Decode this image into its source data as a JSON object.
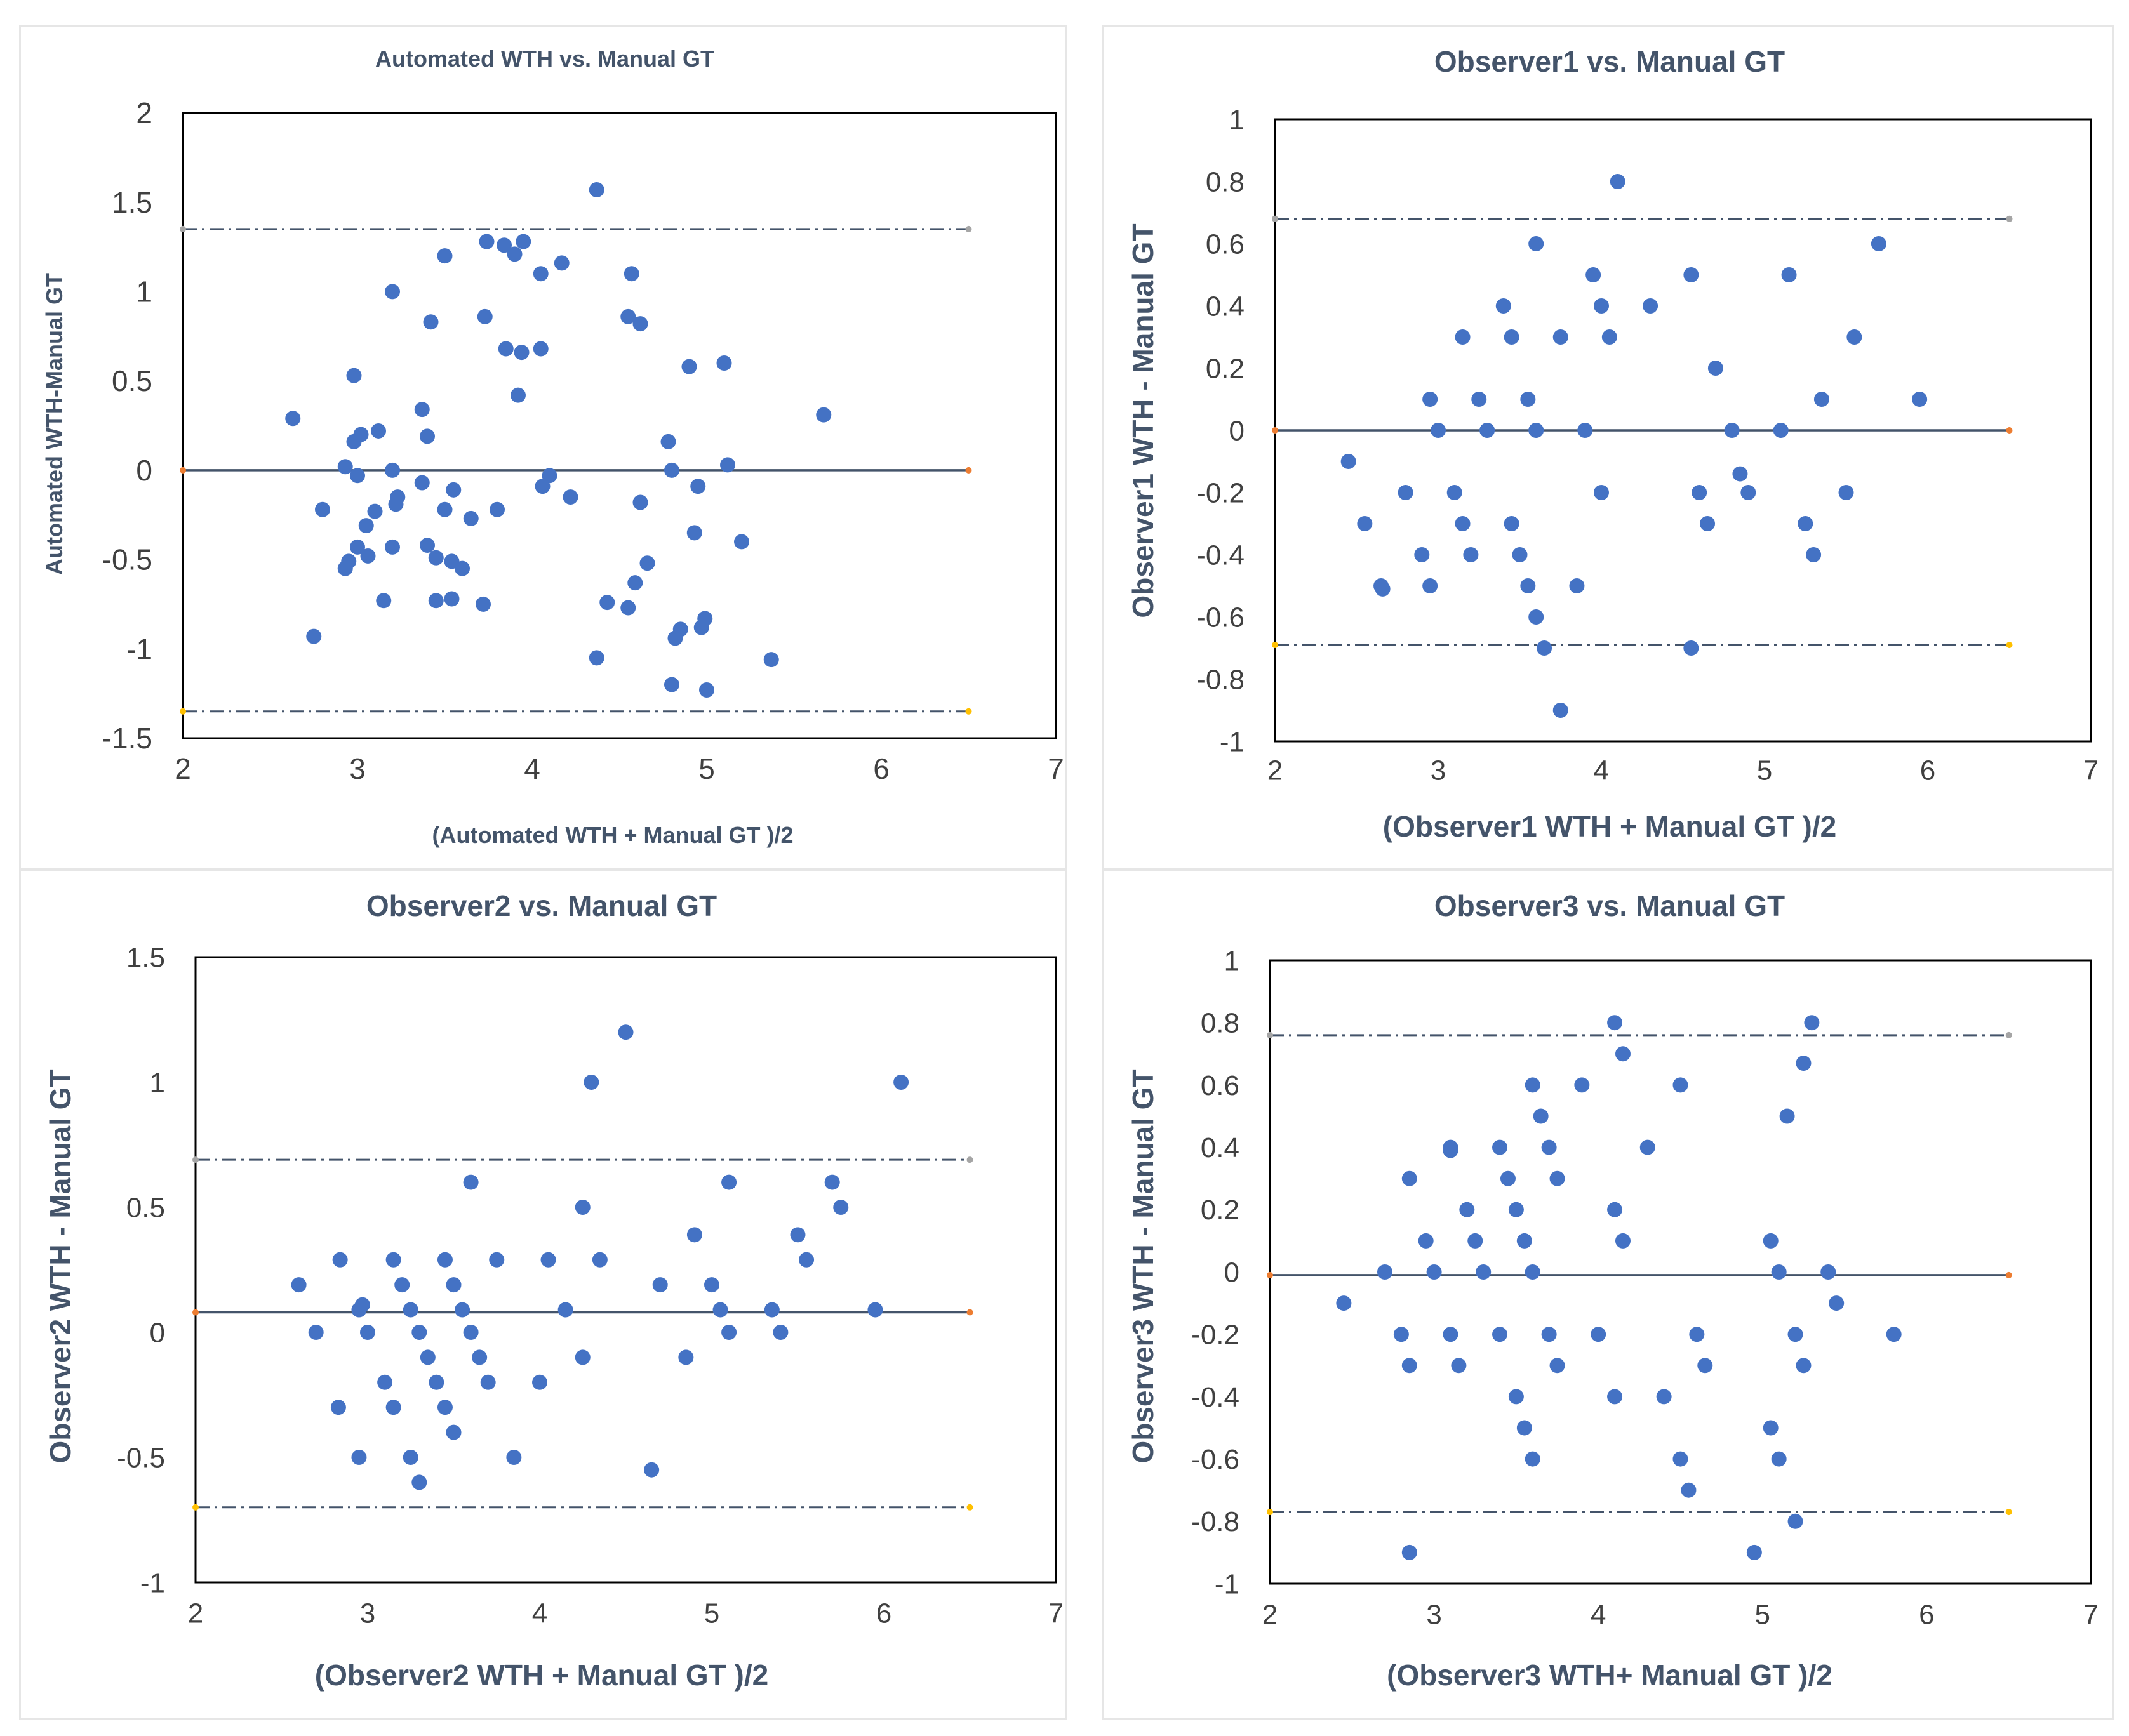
{
  "colors": {
    "point": "#4472c4",
    "mean_line": "#44546a",
    "loa_line": "#44546a",
    "marker_upper": "#a5a5a5",
    "marker_mean": "#ed7d31",
    "marker_lower": "#ffc000",
    "plot_border": "#000000",
    "text": "#44546a",
    "tick": "#404040"
  },
  "chart_data": [
    {
      "type": "scatter",
      "title": "Automated WTH vs. Manual GT",
      "xlabel": "(Automated WTH + Manual GT )/2",
      "ylabel": "Automated WTH-Manual GT",
      "xlim": [
        2,
        7
      ],
      "ylim": [
        -1.5,
        2
      ],
      "xticks": [
        2,
        3,
        4,
        5,
        6,
        7
      ],
      "yticks": [
        -1.5,
        -1,
        -0.5,
        0,
        0.5,
        1,
        1.5,
        2
      ],
      "ytick_labels": [
        "-1.5",
        "-1",
        "-0.5",
        "0",
        "0.5",
        "1",
        "1.5",
        "2"
      ],
      "mean": 0,
      "upper_loa": 1.35,
      "lower_loa": -1.35,
      "line_x": [
        2,
        6.5
      ],
      "points": [
        [
          2.63,
          0.29
        ],
        [
          2.75,
          -0.93
        ],
        [
          2.8,
          -0.22
        ],
        [
          2.93,
          0.02
        ],
        [
          2.93,
          -0.55
        ],
        [
          2.95,
          -0.51
        ],
        [
          2.98,
          0.16
        ],
        [
          2.98,
          0.53
        ],
        [
          3.0,
          -0.43
        ],
        [
          3.0,
          -0.03
        ],
        [
          3.02,
          0.2
        ],
        [
          3.05,
          -0.31
        ],
        [
          3.06,
          -0.48
        ],
        [
          3.1,
          -0.23
        ],
        [
          3.12,
          0.22
        ],
        [
          3.15,
          -0.73
        ],
        [
          3.2,
          -0.43
        ],
        [
          3.2,
          0.0
        ],
        [
          3.2,
          1.0
        ],
        [
          3.22,
          -0.19
        ],
        [
          3.23,
          -0.15
        ],
        [
          3.37,
          0.34
        ],
        [
          3.37,
          -0.07
        ],
        [
          3.4,
          0.19
        ],
        [
          3.4,
          -0.42
        ],
        [
          3.42,
          0.83
        ],
        [
          3.45,
          -0.49
        ],
        [
          3.45,
          -0.73
        ],
        [
          3.5,
          -0.22
        ],
        [
          3.5,
          1.2
        ],
        [
          3.54,
          -0.51
        ],
        [
          3.55,
          -0.11
        ],
        [
          3.54,
          -0.72
        ],
        [
          3.6,
          -0.55
        ],
        [
          3.65,
          -0.27
        ],
        [
          3.72,
          -0.75
        ],
        [
          3.73,
          0.86
        ],
        [
          3.74,
          1.28
        ],
        [
          3.8,
          -0.22
        ],
        [
          3.84,
          1.26
        ],
        [
          3.85,
          0.68
        ],
        [
          3.9,
          1.21
        ],
        [
          3.92,
          0.42
        ],
        [
          3.94,
          0.66
        ],
        [
          3.95,
          1.28
        ],
        [
          4.05,
          1.1
        ],
        [
          4.05,
          0.68
        ],
        [
          4.06,
          -0.09
        ],
        [
          4.1,
          -0.03
        ],
        [
          4.17,
          1.16
        ],
        [
          4.22,
          -0.15
        ],
        [
          4.37,
          1.57
        ],
        [
          4.37,
          -1.05
        ],
        [
          4.43,
          -0.74
        ],
        [
          4.55,
          0.86
        ],
        [
          4.55,
          -0.77
        ],
        [
          4.57,
          1.1
        ],
        [
          4.59,
          -0.63
        ],
        [
          4.62,
          0.82
        ],
        [
          4.62,
          -0.18
        ],
        [
          4.66,
          -0.52
        ],
        [
          4.78,
          0.16
        ],
        [
          4.8,
          0.0
        ],
        [
          4.8,
          -1.2
        ],
        [
          4.82,
          -0.94
        ],
        [
          4.85,
          -0.89
        ],
        [
          4.9,
          0.58
        ],
        [
          4.93,
          -0.35
        ],
        [
          4.95,
          -0.09
        ],
        [
          4.97,
          -0.88
        ],
        [
          4.99,
          -0.83
        ],
        [
          5.0,
          -1.23
        ],
        [
          5.1,
          0.6
        ],
        [
          5.12,
          0.03
        ],
        [
          5.2,
          -0.4
        ],
        [
          5.37,
          -1.06
        ],
        [
          5.67,
          0.31
        ]
      ]
    },
    {
      "type": "scatter",
      "title": "Observer1 vs. Manual GT",
      "xlabel": "(Observer1 WTH + Manual GT )/2",
      "ylabel": "Observer1 WTH - Manual GT",
      "xlim": [
        2,
        7
      ],
      "ylim": [
        -1,
        1
      ],
      "xticks": [
        2,
        3,
        4,
        5,
        6,
        7
      ],
      "yticks": [
        -1,
        -0.8,
        -0.6,
        -0.4,
        -0.2,
        0,
        0.2,
        0.4,
        0.6,
        0.8,
        1
      ],
      "ytick_labels": [
        "-1",
        "-0.8",
        "-0.6",
        "-0.4",
        "-0.2",
        "0",
        "0.2",
        "0.4",
        "0.6",
        "0.8",
        "1"
      ],
      "mean": 0,
      "upper_loa": 0.68,
      "lower_loa": -0.69,
      "line_x": [
        2,
        6.5
      ],
      "points": [
        [
          2.45,
          -0.1
        ],
        [
          2.55,
          -0.3
        ],
        [
          2.65,
          -0.5
        ],
        [
          2.66,
          -0.51
        ],
        [
          2.8,
          -0.2
        ],
        [
          2.9,
          -0.4
        ],
        [
          2.95,
          0.1
        ],
        [
          2.95,
          -0.5
        ],
        [
          3.0,
          0.0
        ],
        [
          3.1,
          -0.2
        ],
        [
          3.15,
          0.3
        ],
        [
          3.15,
          -0.3
        ],
        [
          3.2,
          -0.4
        ],
        [
          3.25,
          0.1
        ],
        [
          3.3,
          0.0
        ],
        [
          3.4,
          0.4
        ],
        [
          3.45,
          0.3
        ],
        [
          3.45,
          -0.3
        ],
        [
          3.5,
          -0.4
        ],
        [
          3.55,
          0.1
        ],
        [
          3.55,
          -0.5
        ],
        [
          3.6,
          0.6
        ],
        [
          3.6,
          0.0
        ],
        [
          3.6,
          -0.6
        ],
        [
          3.65,
          -0.7
        ],
        [
          3.75,
          0.3
        ],
        [
          3.75,
          -0.9
        ],
        [
          3.85,
          -0.5
        ],
        [
          3.9,
          0.0
        ],
        [
          3.95,
          0.5
        ],
        [
          4.0,
          0.4
        ],
        [
          4.0,
          -0.2
        ],
        [
          4.05,
          0.3
        ],
        [
          4.1,
          0.8
        ],
        [
          4.3,
          0.4
        ],
        [
          4.55,
          0.5
        ],
        [
          4.55,
          -0.7
        ],
        [
          4.6,
          -0.2
        ],
        [
          4.65,
          -0.3
        ],
        [
          4.7,
          0.2
        ],
        [
          4.8,
          0.0
        ],
        [
          4.85,
          -0.14
        ],
        [
          4.9,
          -0.2
        ],
        [
          5.1,
          0.0
        ],
        [
          5.15,
          0.5
        ],
        [
          5.25,
          -0.3
        ],
        [
          5.3,
          -0.4
        ],
        [
          5.35,
          0.1
        ],
        [
          5.5,
          -0.2
        ],
        [
          5.55,
          0.3
        ],
        [
          5.7,
          0.6
        ],
        [
          5.95,
          0.1
        ]
      ]
    },
    {
      "type": "scatter",
      "title": "Observer2 vs. Manual GT",
      "xlabel": "(Observer2 WTH + Manual GT )/2",
      "ylabel": "Observer2 WTH - Manual GT",
      "xlim": [
        2,
        7
      ],
      "ylim": [
        -1,
        1.5
      ],
      "xticks": [
        2,
        3,
        4,
        5,
        6,
        7
      ],
      "yticks": [
        -1,
        -0.5,
        0,
        0.5,
        1,
        1.5
      ],
      "ytick_labels": [
        "-1",
        "-0.5",
        "0",
        "0.5",
        "1",
        "1.5"
      ],
      "mean": 0.08,
      "upper_loa": 0.69,
      "lower_loa": -0.7,
      "line_x": [
        2,
        6.5
      ],
      "points": [
        [
          2.6,
          0.19
        ],
        [
          2.7,
          0.0
        ],
        [
          2.83,
          -0.3
        ],
        [
          2.84,
          0.29
        ],
        [
          2.95,
          -0.5
        ],
        [
          2.95,
          0.09
        ],
        [
          2.97,
          0.11
        ],
        [
          3.0,
          0.0
        ],
        [
          3.1,
          -0.2
        ],
        [
          3.15,
          0.29
        ],
        [
          3.15,
          -0.3
        ],
        [
          3.2,
          0.19
        ],
        [
          3.25,
          -0.5
        ],
        [
          3.25,
          0.09
        ],
        [
          3.3,
          0.0
        ],
        [
          3.3,
          -0.6
        ],
        [
          3.35,
          -0.1
        ],
        [
          3.4,
          -0.2
        ],
        [
          3.45,
          0.29
        ],
        [
          3.45,
          -0.3
        ],
        [
          3.5,
          0.19
        ],
        [
          3.5,
          -0.4
        ],
        [
          3.55,
          0.09
        ],
        [
          3.6,
          0.6
        ],
        [
          3.6,
          0.0
        ],
        [
          3.65,
          -0.1
        ],
        [
          3.7,
          -0.2
        ],
        [
          3.75,
          0.29
        ],
        [
          3.85,
          -0.5
        ],
        [
          4.0,
          -0.2
        ],
        [
          4.05,
          0.29
        ],
        [
          4.15,
          0.09
        ],
        [
          4.25,
          0.5
        ],
        [
          4.25,
          -0.1
        ],
        [
          4.3,
          1.0
        ],
        [
          4.35,
          0.29
        ],
        [
          4.5,
          1.2
        ],
        [
          4.65,
          -0.55
        ],
        [
          4.7,
          0.19
        ],
        [
          4.85,
          -0.1
        ],
        [
          4.9,
          0.39
        ],
        [
          5.0,
          0.19
        ],
        [
          5.05,
          0.09
        ],
        [
          5.1,
          0.6
        ],
        [
          5.1,
          0.0
        ],
        [
          5.35,
          0.09
        ],
        [
          5.4,
          0.0
        ],
        [
          5.5,
          0.39
        ],
        [
          5.55,
          0.29
        ],
        [
          5.7,
          0.6
        ],
        [
          5.75,
          0.5
        ],
        [
          5.95,
          0.09
        ],
        [
          6.1,
          1.0
        ]
      ]
    },
    {
      "type": "scatter",
      "title": "Observer3 vs. Manual GT",
      "xlabel": "(Observer3 WTH+ Manual GT )/2",
      "ylabel": "Observer3 WTH - Manual GT",
      "xlim": [
        2,
        7
      ],
      "ylim": [
        -1,
        1
      ],
      "xticks": [
        2,
        3,
        4,
        5,
        6,
        7
      ],
      "yticks": [
        -1,
        -0.8,
        -0.6,
        -0.4,
        -0.2,
        0,
        0.2,
        0.4,
        0.6,
        0.8,
        1
      ],
      "ytick_labels": [
        "-1",
        "-0.8",
        "-0.6",
        "-0.4",
        "-0.2",
        "0",
        "0.2",
        "0.4",
        "0.6",
        "0.8",
        "1"
      ],
      "mean": -0.01,
      "upper_loa": 0.76,
      "lower_loa": -0.77,
      "line_x": [
        2,
        6.5
      ],
      "points": [
        [
          2.45,
          -0.1
        ],
        [
          2.7,
          0.0
        ],
        [
          2.8,
          -0.2
        ],
        [
          2.85,
          0.3
        ],
        [
          2.85,
          -0.3
        ],
        [
          2.85,
          -0.9
        ],
        [
          2.95,
          0.1
        ],
        [
          3.0,
          0.0
        ],
        [
          3.1,
          0.4
        ],
        [
          3.1,
          0.39
        ],
        [
          3.1,
          -0.2
        ],
        [
          3.15,
          -0.3
        ],
        [
          3.2,
          0.2
        ],
        [
          3.25,
          0.1
        ],
        [
          3.3,
          0.0
        ],
        [
          3.4,
          0.4
        ],
        [
          3.4,
          -0.2
        ],
        [
          3.45,
          0.3
        ],
        [
          3.5,
          0.2
        ],
        [
          3.5,
          -0.4
        ],
        [
          3.55,
          0.1
        ],
        [
          3.55,
          -0.5
        ],
        [
          3.6,
          0.6
        ],
        [
          3.6,
          0.0
        ],
        [
          3.6,
          -0.6
        ],
        [
          3.65,
          0.5
        ],
        [
          3.7,
          0.4
        ],
        [
          3.7,
          -0.2
        ],
        [
          3.75,
          0.3
        ],
        [
          3.75,
          -0.3
        ],
        [
          3.9,
          0.6
        ],
        [
          4.0,
          -0.2
        ],
        [
          4.1,
          0.8
        ],
        [
          4.1,
          0.2
        ],
        [
          4.1,
          -0.4
        ],
        [
          4.15,
          0.7
        ],
        [
          4.15,
          0.1
        ],
        [
          4.3,
          0.4
        ],
        [
          4.4,
          -0.4
        ],
        [
          4.5,
          0.6
        ],
        [
          4.5,
          -0.6
        ],
        [
          4.55,
          -0.7
        ],
        [
          4.6,
          -0.2
        ],
        [
          4.65,
          -0.3
        ],
        [
          4.95,
          -0.9
        ],
        [
          5.05,
          0.1
        ],
        [
          5.05,
          -0.5
        ],
        [
          5.1,
          0.0
        ],
        [
          5.1,
          -0.6
        ],
        [
          5.15,
          0.5
        ],
        [
          5.2,
          -0.2
        ],
        [
          5.2,
          -0.8
        ],
        [
          5.25,
          0.67
        ],
        [
          5.25,
          -0.3
        ],
        [
          5.3,
          0.8
        ],
        [
          5.4,
          0.0
        ],
        [
          5.45,
          -0.1
        ],
        [
          5.8,
          -0.2
        ]
      ]
    }
  ]
}
